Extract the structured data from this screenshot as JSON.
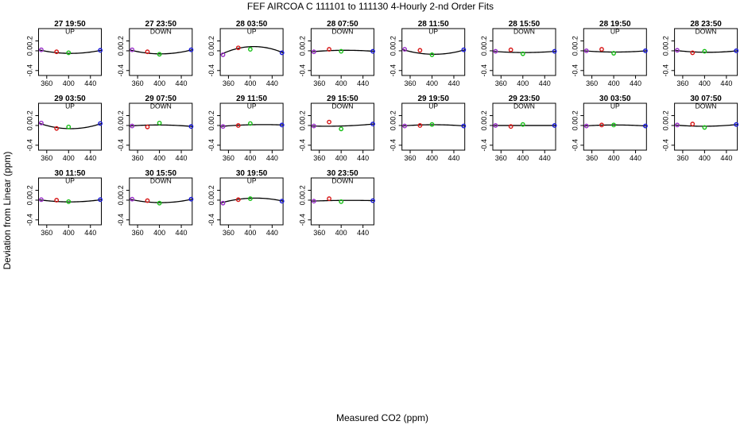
{
  "title": "FEF   AIRCOA C   111101 to 111130   4-Hourly 2-nd Order Fits",
  "xlabel": "Measured CO2 (ppm)",
  "ylabel": "Deviation from Linear (ppm)",
  "chart_data": {
    "type": "scatter",
    "xlim": [
      345,
      460
    ],
    "ylim": [
      -0.5,
      0.45
    ],
    "xticks": [
      360,
      400,
      440
    ],
    "yticks": [
      -0.4,
      0.0,
      0.2
    ],
    "ytick_labels": [
      "-0.4",
      "0.0",
      "0.2"
    ],
    "grid": false,
    "point_colors": [
      "#9a30c8",
      "#d81818",
      "#18c018",
      "#1818d8"
    ],
    "curve_color": "#000000",
    "marker_x": [
      350,
      378,
      400,
      458
    ],
    "panels": [
      {
        "title": "27 19:50",
        "dir": "UP",
        "points": [
          [
            350,
            0.02
          ],
          [
            378,
            -0.02
          ],
          [
            400,
            -0.04
          ],
          [
            458,
            0.01
          ]
        ],
        "curve": [
          0.02,
          -0.052,
          0.012
        ]
      },
      {
        "title": "27 23:50",
        "dir": "DOWN",
        "points": [
          [
            350,
            0.02
          ],
          [
            378,
            -0.02
          ],
          [
            400,
            -0.07
          ],
          [
            458,
            0.02
          ]
        ],
        "curve": [
          0.02,
          -0.062,
          0.022
        ]
      },
      {
        "title": "28 03:50",
        "dir": "UP",
        "points": [
          [
            350,
            -0.08
          ],
          [
            378,
            0.06
          ],
          [
            400,
            0.03
          ],
          [
            458,
            -0.04
          ]
        ],
        "curve": [
          -0.08,
          0.085,
          -0.04
        ]
      },
      {
        "title": "28 07:50",
        "dir": "DOWN",
        "points": [
          [
            350,
            -0.02
          ],
          [
            378,
            0.03
          ],
          [
            400,
            -0.01
          ],
          [
            458,
            -0.01
          ]
        ],
        "curve": [
          -0.02,
          0.01,
          -0.01
        ]
      },
      {
        "title": "28 11:50",
        "dir": "UP",
        "points": [
          [
            350,
            0.03
          ],
          [
            378,
            0.01
          ],
          [
            400,
            -0.08
          ],
          [
            458,
            0.02
          ]
        ],
        "curve": [
          0.03,
          -0.07,
          0.02
        ]
      },
      {
        "title": "28 15:50",
        "dir": "DOWN",
        "points": [
          [
            350,
            -0.01
          ],
          [
            378,
            0.02
          ],
          [
            400,
            -0.06
          ],
          [
            458,
            -0.01
          ]
        ],
        "curve": [
          -0.01,
          -0.035,
          -0.01
        ]
      },
      {
        "title": "28 19:50",
        "dir": "UP",
        "points": [
          [
            350,
            0.0
          ],
          [
            378,
            0.03
          ],
          [
            400,
            -0.05
          ],
          [
            458,
            0.0
          ]
        ],
        "curve": [
          0.0,
          -0.025,
          0.0
        ]
      },
      {
        "title": "28 23:50",
        "dir": "DOWN",
        "points": [
          [
            350,
            0.01
          ],
          [
            378,
            -0.04
          ],
          [
            400,
            -0.01
          ],
          [
            458,
            0.0
          ]
        ],
        "curve": [
          0.01,
          -0.03,
          0.0
        ]
      },
      {
        "title": "29 03:50",
        "dir": "UP",
        "points": [
          [
            350,
            0.05
          ],
          [
            378,
            -0.06
          ],
          [
            400,
            -0.03
          ],
          [
            458,
            0.04
          ]
        ],
        "curve": [
          0.05,
          -0.065,
          0.04
        ]
      },
      {
        "title": "29 07:50",
        "dir": "DOWN",
        "points": [
          [
            350,
            -0.01
          ],
          [
            378,
            -0.03
          ],
          [
            400,
            0.05
          ],
          [
            458,
            -0.02
          ]
        ],
        "curve": [
          -0.01,
          0.01,
          -0.02
        ]
      },
      {
        "title": "29 11:50",
        "dir": "UP",
        "points": [
          [
            350,
            -0.02
          ],
          [
            378,
            0.0
          ],
          [
            400,
            0.04
          ],
          [
            458,
            0.01
          ]
        ],
        "curve": [
          -0.02,
          0.015,
          0.01
        ]
      },
      {
        "title": "29 15:50",
        "dir": "DOWN",
        "points": [
          [
            350,
            -0.01
          ],
          [
            378,
            0.07
          ],
          [
            400,
            -0.07
          ],
          [
            458,
            0.03
          ]
        ],
        "curve": [
          -0.01,
          -0.01,
          0.03
        ]
      },
      {
        "title": "29 19:50",
        "dir": "UP",
        "points": [
          [
            350,
            -0.01
          ],
          [
            378,
            0.0
          ],
          [
            400,
            0.02
          ],
          [
            458,
            -0.01
          ]
        ],
        "curve": [
          -0.01,
          0.015,
          -0.01
        ]
      },
      {
        "title": "29 23:50",
        "dir": "DOWN",
        "points": [
          [
            350,
            0.0
          ],
          [
            378,
            -0.02
          ],
          [
            400,
            0.02
          ],
          [
            458,
            0.0
          ]
        ],
        "curve": [
          0.0,
          0.0,
          0.0
        ]
      },
      {
        "title": "30 03:50",
        "dir": "UP",
        "points": [
          [
            350,
            -0.01
          ],
          [
            378,
            0.01
          ],
          [
            400,
            0.01
          ],
          [
            458,
            -0.01
          ]
        ],
        "curve": [
          -0.01,
          0.01,
          -0.01
        ]
      },
      {
        "title": "30 07:50",
        "dir": "DOWN",
        "points": [
          [
            350,
            0.01
          ],
          [
            378,
            0.03
          ],
          [
            400,
            -0.04
          ],
          [
            458,
            0.02
          ]
        ],
        "curve": [
          0.01,
          -0.015,
          0.02
        ]
      },
      {
        "title": "30 11:50",
        "dir": "UP",
        "points": [
          [
            350,
            0.01
          ],
          [
            378,
            0.0
          ],
          [
            400,
            -0.03
          ],
          [
            458,
            0.01
          ]
        ],
        "curve": [
          0.01,
          -0.035,
          0.01
        ]
      },
      {
        "title": "30 15:50",
        "dir": "DOWN",
        "points": [
          [
            350,
            0.02
          ],
          [
            378,
            -0.01
          ],
          [
            400,
            -0.06
          ],
          [
            458,
            0.02
          ]
        ],
        "curve": [
          0.02,
          -0.05,
          0.02
        ]
      },
      {
        "title": "30 19:50",
        "dir": "UP",
        "points": [
          [
            350,
            -0.06
          ],
          [
            378,
            0.01
          ],
          [
            400,
            0.03
          ],
          [
            458,
            -0.02
          ]
        ],
        "curve": [
          -0.06,
          0.04,
          -0.02
        ]
      },
      {
        "title": "30 23:50",
        "dir": "DOWN",
        "points": [
          [
            350,
            -0.02
          ],
          [
            378,
            0.03
          ],
          [
            400,
            -0.03
          ],
          [
            458,
            -0.01
          ]
        ],
        "curve": [
          -0.02,
          -0.005,
          -0.01
        ]
      }
    ]
  }
}
